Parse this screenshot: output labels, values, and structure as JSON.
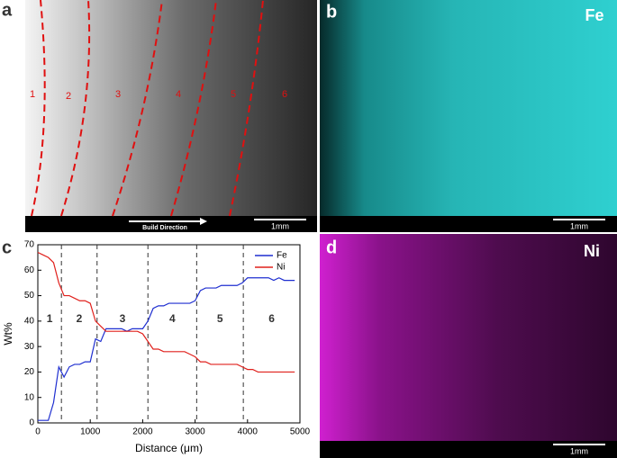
{
  "panels": {
    "a": {
      "label": "a",
      "regions": [
        "1",
        "2",
        "3",
        "4",
        "5",
        "6"
      ],
      "direction": "Build Direction",
      "scale": "1mm"
    },
    "b": {
      "label": "b",
      "element": "Fe",
      "scale": "1mm"
    },
    "c": {
      "label": "c"
    },
    "d": {
      "label": "d",
      "element": "Ni",
      "scale": "1mm"
    }
  },
  "chart_data": {
    "type": "line",
    "x_label": "Distance (μm)",
    "y_label": "Wt%",
    "x": [
      0,
      100,
      200,
      300,
      400,
      500,
      600,
      700,
      800,
      900,
      1000,
      1100,
      1200,
      1300,
      1400,
      1500,
      1600,
      1700,
      1800,
      1900,
      2000,
      2100,
      2200,
      2300,
      2400,
      2500,
      2600,
      2700,
      2800,
      2900,
      3000,
      3100,
      3200,
      3300,
      3400,
      3500,
      3600,
      3700,
      3800,
      3900,
      4000,
      4100,
      4200,
      4300,
      4400,
      4500,
      4600,
      4700,
      4800,
      4900
    ],
    "series": [
      {
        "name": "Fe",
        "color": "#1f2fd0",
        "values": [
          1,
          1,
          1,
          8,
          22,
          18,
          22,
          23,
          23,
          24,
          24,
          33,
          32,
          37,
          37,
          37,
          37,
          36,
          37,
          37,
          37,
          40,
          45,
          46,
          46,
          47,
          47,
          47,
          47,
          47,
          48,
          52,
          53,
          53,
          53,
          54,
          54,
          54,
          54,
          55,
          57,
          57,
          57,
          57,
          57,
          56,
          57,
          56,
          56,
          56
        ]
      },
      {
        "name": "Ni",
        "color": "#e0201c",
        "values": [
          67,
          66,
          65,
          63,
          55,
          50,
          50,
          49,
          48,
          48,
          47,
          40,
          38,
          36,
          36,
          36,
          36,
          36,
          36,
          36,
          35,
          32,
          29,
          29,
          28,
          28,
          28,
          28,
          28,
          27,
          26,
          24,
          24,
          23,
          23,
          23,
          23,
          23,
          23,
          22,
          21,
          21,
          20,
          20,
          20,
          20,
          20,
          20,
          20,
          20
        ]
      }
    ],
    "boundaries": [
      450,
      1130,
      2100,
      3030,
      3920
    ],
    "region_labels": [
      "1",
      "2",
      "3",
      "4",
      "5",
      "6"
    ],
    "xlim": [
      0,
      5000
    ],
    "xticks": [
      0,
      1000,
      2000,
      3000,
      4000,
      5000
    ],
    "ylim": [
      0,
      70
    ],
    "yticks": [
      0,
      10,
      20,
      30,
      40,
      50,
      60,
      70
    ],
    "legend": "upper right"
  }
}
